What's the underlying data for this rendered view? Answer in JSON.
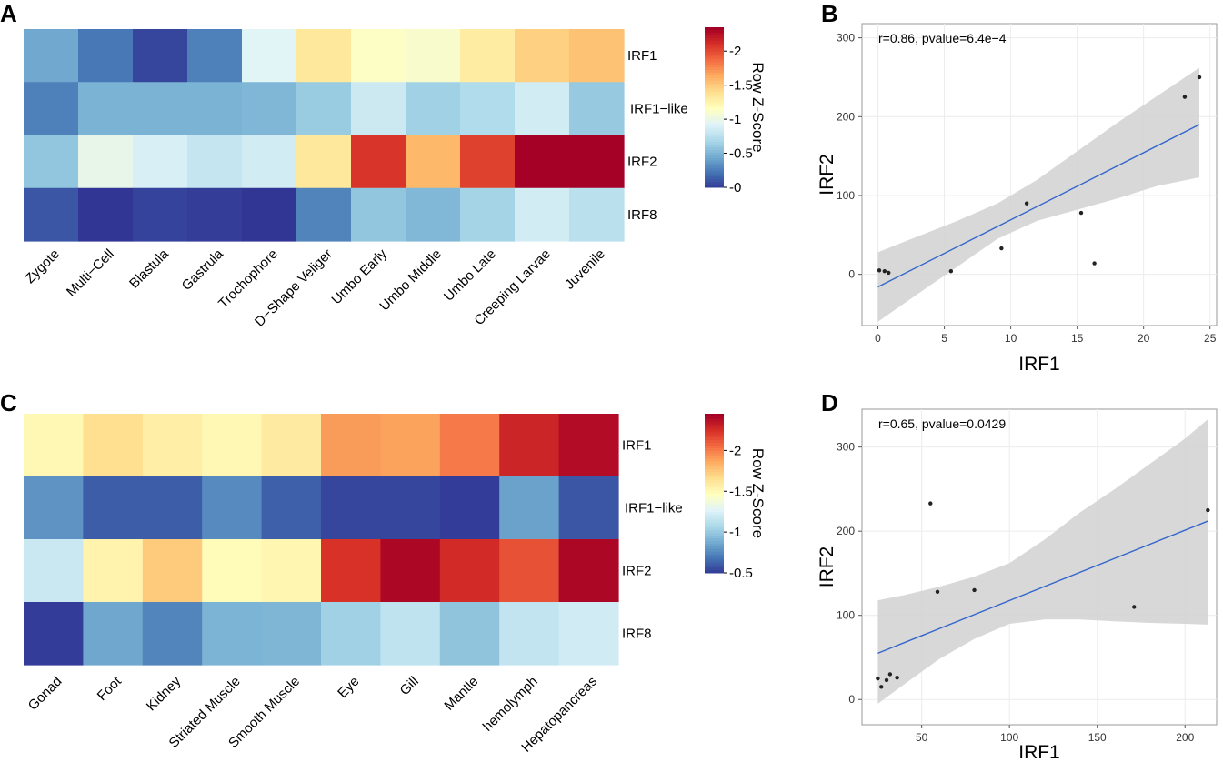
{
  "colors": {
    "low": "#313695",
    "high": "#a50026",
    "ribbon": "#d4d4d4",
    "fit_line": "#3366cc",
    "point": "#222222",
    "grid": "#ececec"
  },
  "chart_data": [
    {
      "panel": "A",
      "type": "heatmap",
      "rows": [
        "IRF1",
        "IRF1−like",
        "IRF2",
        "IRF8"
      ],
      "columns": [
        "Zygote",
        "Multi−Cell",
        "Blastula",
        "Gastrula",
        "Trochophore",
        "D−Shape Veliger",
        "Umbo Early",
        "Umbo Middle",
        "Umbo Late",
        "Creeping Larvae",
        "Juvenile"
      ],
      "values": [
        [
          0.45,
          0.25,
          0.06,
          0.28,
          0.95,
          1.35,
          1.15,
          1.12,
          1.32,
          1.48,
          1.55
        ],
        [
          0.28,
          0.5,
          0.5,
          0.5,
          0.52,
          0.63,
          0.85,
          0.66,
          0.73,
          0.88,
          0.62
        ],
        [
          0.6,
          1.0,
          0.9,
          0.82,
          0.88,
          1.35,
          2.1,
          1.6,
          2.05,
          2.38,
          2.42
        ],
        [
          0.12,
          0.0,
          0.05,
          0.03,
          0.0,
          0.3,
          0.6,
          0.53,
          0.68,
          0.88,
          0.77
        ]
      ],
      "colorbar": {
        "title": "Row Z-Score",
        "ticks": [
          0,
          0.5,
          1,
          1.5,
          2
        ],
        "tick_labels": [
          "0",
          "0.5",
          "1",
          "1.5",
          "2"
        ],
        "range": [
          0,
          2.35
        ]
      }
    },
    {
      "panel": "B",
      "type": "scatter",
      "annotation": "r=0.86, pvalue=6.4e−4",
      "xlabel": "IRF1",
      "ylabel": "IRF2",
      "xlim": [
        -1.2,
        25.5
      ],
      "ylim": [
        -65,
        318
      ],
      "xticks": [
        0,
        5,
        10,
        15,
        20,
        25
      ],
      "yticks": [
        0,
        100,
        200,
        300
      ],
      "points": [
        [
          0.1,
          5
        ],
        [
          0.5,
          4
        ],
        [
          0.8,
          2
        ],
        [
          5.5,
          4
        ],
        [
          9.3,
          33
        ],
        [
          11.2,
          90
        ],
        [
          15.3,
          78
        ],
        [
          16.3,
          14
        ],
        [
          23.1,
          225
        ],
        [
          24.2,
          250
        ]
      ],
      "fit": {
        "x0": 0,
        "x1": 24.2,
        "y0": -16,
        "y1": 190
      },
      "ribbon": [
        [
          0,
          28,
          -60
        ],
        [
          3,
          48,
          -25
        ],
        [
          6,
          68,
          10
        ],
        [
          9,
          90,
          45
        ],
        [
          12,
          120,
          68
        ],
        [
          15,
          156,
          82
        ],
        [
          18,
          192,
          96
        ],
        [
          21,
          226,
          112
        ],
        [
          24.2,
          262,
          123
        ]
      ]
    },
    {
      "panel": "C",
      "type": "heatmap",
      "rows": [
        "IRF1",
        "IRF1−like",
        "IRF2",
        "IRF8"
      ],
      "columns": [
        "Gonad",
        "Foot",
        "Kidney",
        "Striated Muscle",
        "Smooth Muscle",
        "Eye",
        "Gill",
        "Mantle",
        "hemolymph",
        "Hepatopancreas"
      ],
      "values": [
        [
          1.52,
          1.67,
          1.58,
          1.52,
          1.6,
          1.92,
          1.9,
          2.02,
          2.3,
          2.4
        ],
        [
          0.8,
          0.62,
          0.62,
          0.77,
          0.63,
          0.55,
          0.55,
          0.52,
          0.85,
          0.6
        ],
        [
          1.2,
          1.55,
          1.75,
          1.5,
          1.53,
          2.25,
          2.42,
          2.28,
          2.15,
          2.42
        ],
        [
          0.52,
          0.87,
          0.75,
          0.92,
          0.93,
          1.05,
          1.16,
          0.99,
          1.17,
          1.22
        ]
      ],
      "colorbar": {
        "title": "Row Z-Score",
        "ticks": [
          0.5,
          1,
          1.5,
          2
        ],
        "tick_labels": [
          "0.5",
          "1",
          "1.5",
          "2"
        ],
        "range": [
          0.5,
          2.45
        ]
      }
    },
    {
      "panel": "D",
      "type": "scatter",
      "annotation": "r=0.65, pvalue=0.0429",
      "xlabel": "IRF1",
      "ylabel": "IRF2",
      "xlim": [
        16,
        218
      ],
      "ylim": [
        -30,
        345
      ],
      "xticks": [
        50,
        100,
        150,
        200
      ],
      "yticks": [
        0,
        100,
        200,
        300
      ],
      "points": [
        [
          25,
          25
        ],
        [
          27,
          15
        ],
        [
          30,
          23
        ],
        [
          32,
          30
        ],
        [
          36,
          26
        ],
        [
          55,
          233
        ],
        [
          59,
          128
        ],
        [
          80,
          130
        ],
        [
          171,
          110
        ],
        [
          213,
          225
        ]
      ],
      "fit": {
        "x0": 25,
        "x1": 213,
        "y0": 55,
        "y1": 212
      },
      "ribbon": [
        [
          25,
          118,
          -5
        ],
        [
          40,
          124,
          18
        ],
        [
          60,
          134,
          48
        ],
        [
          80,
          146,
          72
        ],
        [
          100,
          162,
          90
        ],
        [
          120,
          190,
          95
        ],
        [
          140,
          222,
          95
        ],
        [
          160,
          250,
          93
        ],
        [
          180,
          280,
          91
        ],
        [
          200,
          310,
          90
        ],
        [
          213,
          333,
          89
        ]
      ]
    }
  ]
}
